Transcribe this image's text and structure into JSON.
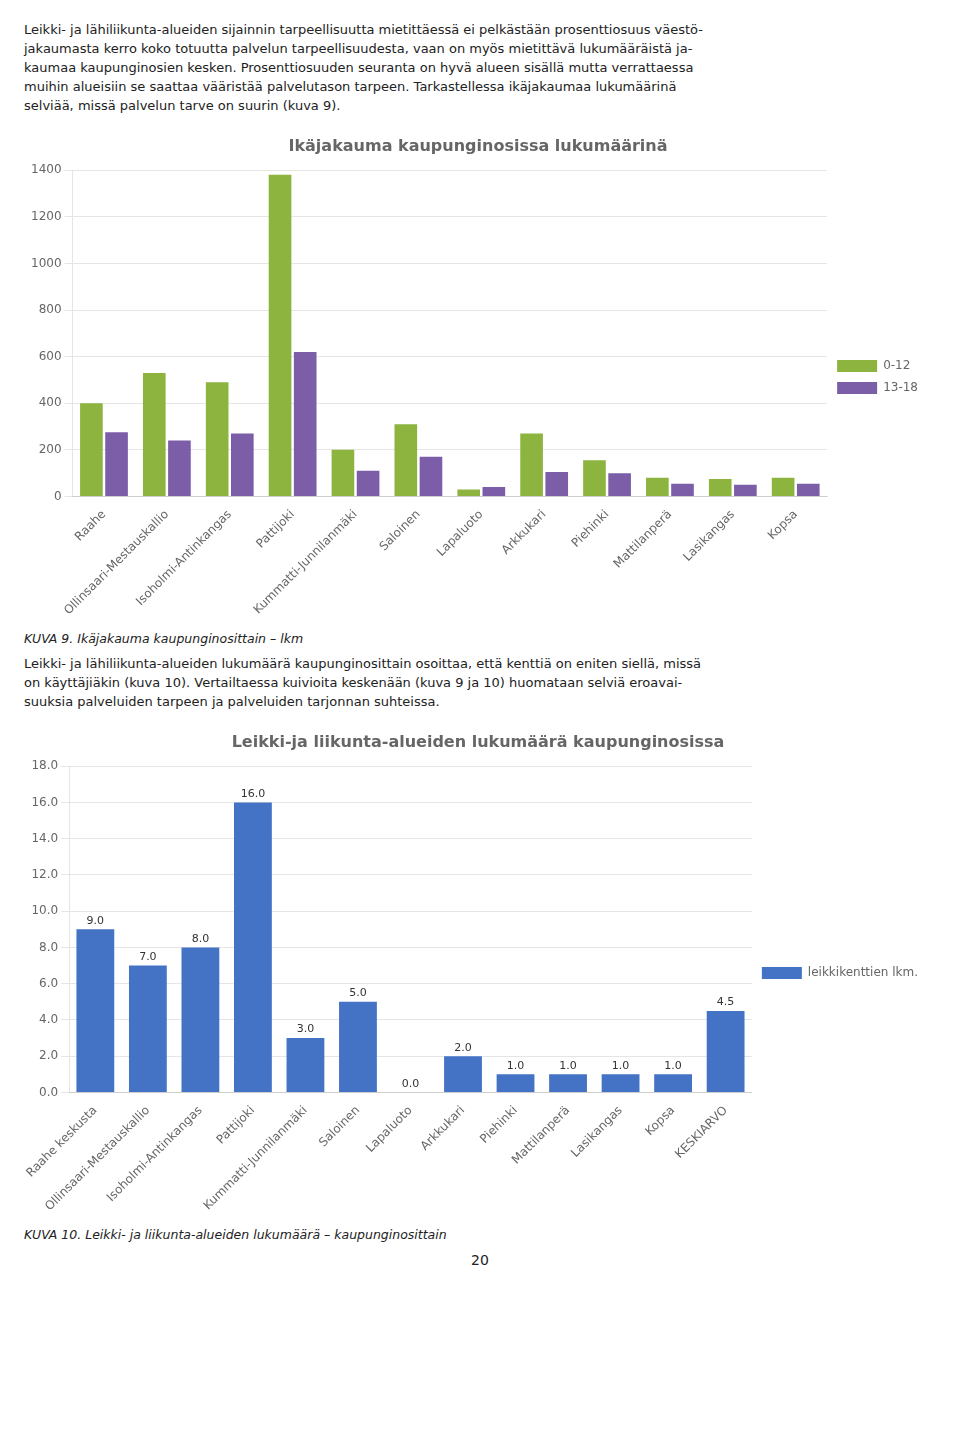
{
  "paragraphs": [
    [
      "Leikki- ja lähiliikunta-alueiden sijainnin tarpeellisuutta mietittäessä ei pelkästään prosenttiosuus väestö-",
      "jakaumasta kerro koko totuutta palvelun tarpeellisuudesta, vaan on myös mietittävä lukumääräistä ja-",
      "kaumaa kaupunginosien kesken. Prosenttiosuuden seuranta on hyvä alueen sisällä mutta verrattaessa",
      "muihin alueisiin se saattaa vääristää palvelutason tarpeen. Tarkastellessa ikäjakaumaa lukumäärinä",
      "selviää, missä palvelun tarve on suurin (kuva 9)."
    ],
    [
      "Leikki- ja lähiliikunta-alueiden lukumäärä kaupunginosittain osoittaa, että kenttiä on eniten siellä, missä",
      "on käyttäjiäkin (kuva 10). Vertailtaessa kuivioita keskenään (kuva 9 ja 10) huomataan selviä eroavai-",
      "suuksia palveluiden tarpeen ja palveluiden tarjonnan suhteissa."
    ]
  ],
  "chart_data": [
    {
      "type": "bar",
      "title": "Ikäjakauma kaupunginosissa lukumäärinä",
      "categories": [
        "Raahe",
        "Ollinsaari-Mestauskallio",
        "Isoholmi-Antinkangas",
        "Pattijoki",
        "Kummatti-Junnilanmäki",
        "Saloinen",
        "Lapaluoto",
        "Arkkukari",
        "Piehinki",
        "Mattilanperä",
        "Lasikangas",
        "Kopsa"
      ],
      "series": [
        {
          "name": "0-12",
          "color": "#8DB43E",
          "values": [
            400,
            530,
            490,
            1380,
            200,
            310,
            30,
            270,
            155,
            80,
            75,
            80
          ]
        },
        {
          "name": "13-18",
          "color": "#7B5EA7",
          "values": [
            275,
            240,
            270,
            620,
            110,
            170,
            40,
            105,
            100,
            55,
            50,
            55
          ]
        }
      ],
      "ylim": [
        0,
        1400
      ],
      "yticks": [
        0,
        200,
        400,
        600,
        800,
        1000,
        1200,
        1400
      ],
      "grid": true,
      "legend": "right",
      "caption": "KUVA 9. Ikäjakauma kaupunginosittain – lkm"
    },
    {
      "type": "bar",
      "title": "Leikki-ja liikunta-alueiden lukumäärä kaupunginosissa",
      "categories": [
        "Raahe keskusta",
        "Ollinsaari-Mestauskallio",
        "Isoholmi-Antinkangas",
        "Pattijoki",
        "Kummatti-Junnilanmäki",
        "Saloinen",
        "Lapaluoto",
        "Arkkukari",
        "Piehinki",
        "Mattilanperä",
        "Lasikangas",
        "Kopsa",
        "KESKIARVO"
      ],
      "series": [
        {
          "name": "leikkikenttien lkm.",
          "color": "#4472C4",
          "values": [
            9.0,
            7.0,
            8.0,
            16.0,
            3.0,
            5.0,
            0.0,
            2.0,
            1.0,
            1.0,
            1.0,
            1.0,
            4.5
          ],
          "value_labels": [
            "9.0",
            "7.0",
            "8.0",
            "16.0",
            "3.0",
            "5.0",
            "0.0",
            "2.0",
            "1.0",
            "1.0",
            "1.0",
            "1.0",
            "4.5"
          ]
        }
      ],
      "ylim": [
        0,
        18.0
      ],
      "yticks": [
        {
          "value": 0,
          "label": "0.0"
        },
        {
          "value": 2,
          "label": "2.0"
        },
        {
          "value": 4,
          "label": "4.0"
        },
        {
          "value": 6,
          "label": "6.0"
        },
        {
          "value": 8,
          "label": "8.0"
        },
        {
          "value": 10,
          "label": "10.0"
        },
        {
          "value": 12,
          "label": "12.0"
        },
        {
          "value": 14,
          "label": "14.0"
        },
        {
          "value": 16,
          "label": "16.0"
        },
        {
          "value": 18,
          "label": "18.0"
        }
      ],
      "grid": true,
      "legend": "right",
      "data_labels": true,
      "caption": "KUVA 10. Leikki- ja liikunta-alueiden lukumäärä – kaupunginosittain"
    }
  ],
  "page_number": "20"
}
